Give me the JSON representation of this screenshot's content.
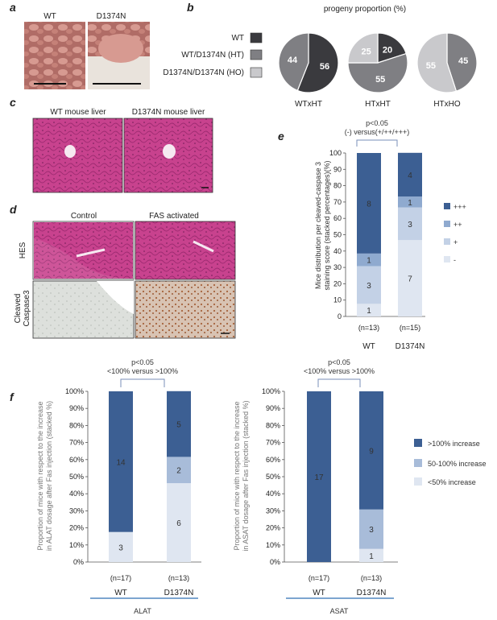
{
  "panels": {
    "a": {
      "letter": "a",
      "labels": [
        "WT",
        "D1374N"
      ]
    },
    "b": {
      "letter": "b",
      "title": "progeny proportion (%)",
      "legend": [
        {
          "label": "WT",
          "color": "#3a3a3e"
        },
        {
          "label": "WT/D1374N (HT)",
          "color": "#7f7f83"
        },
        {
          "label": "D1374N/D1374N (HO)",
          "color": "#c9c9cc"
        }
      ]
    },
    "c": {
      "letter": "c",
      "labels": [
        "WT mouse liver",
        "D1374N mouse liver"
      ]
    },
    "d": {
      "letter": "d",
      "col_labels": [
        "Control",
        "FAS activated"
      ],
      "row_labels": [
        "HES",
        "Cleaved",
        "Caspase3"
      ]
    },
    "e": {
      "letter": "e",
      "sig": "p<0.05",
      "sig_sub": "(-) versus(+/++/+++)",
      "ylabel_1": "Mice distribution per cleaved-caspase 3",
      "ylabel_2": "staining score (stacked percentages)(%)"
    },
    "f": {
      "letter": "f",
      "sig": "p<0.05",
      "sig_sub": "<100% versus >100%",
      "ylabel_1": "Proportion of mice with respect to the increase",
      "alat_ylabel_2": "in ALAT dosage after Fas injection (stacked %)",
      "asat_ylabel_2": "in ASAT dosage after Fas injection (stacked %)",
      "alat_label": "ALAT",
      "asat_label": "ASAT",
      "legend": [
        {
          "label": ">100% increase",
          "color": "#3c5f93"
        },
        {
          "label": "50-100% increase",
          "color": "#a8bcd9"
        },
        {
          "label": "<50% increase",
          "color": "#dfe6f1"
        }
      ]
    }
  },
  "chart_data": [
    {
      "type": "pie",
      "panel": "b",
      "charts": [
        {
          "title": "WTxHT",
          "slices": [
            {
              "label": "WT",
              "value": 56,
              "color": "#3a3a3e"
            },
            {
              "label": "WT/D1374N (HT)",
              "value": 44,
              "color": "#7f7f83"
            }
          ]
        },
        {
          "title": "HTxHT",
          "slices": [
            {
              "label": "WT",
              "value": 20,
              "color": "#3a3a3e"
            },
            {
              "label": "WT/D1374N (HT)",
              "value": 55,
              "color": "#7f7f83"
            },
            {
              "label": "D1374N/D1374N (HO)",
              "value": 25,
              "color": "#c9c9cc"
            }
          ]
        },
        {
          "title": "HTxHO",
          "slices": [
            {
              "label": "WT/D1374N (HT)",
              "value": 45,
              "color": "#7f7f83"
            },
            {
              "label": "D1374N/D1374N (HO)",
              "value": 55,
              "color": "#c9c9cc"
            }
          ]
        }
      ]
    },
    {
      "type": "bar",
      "panel": "e",
      "stacked": true,
      "ylim": [
        0,
        100
      ],
      "yticks": [
        0,
        10,
        20,
        30,
        40,
        50,
        60,
        70,
        80,
        90,
        100
      ],
      "categories": [
        "WT",
        "D1374N"
      ],
      "n_labels": [
        "(n=13)",
        "(n=15)"
      ],
      "series": [
        {
          "name": "-",
          "color": "#dfe6f1",
          "counts": [
            1,
            7
          ],
          "values": [
            7.7,
            46.7
          ]
        },
        {
          "name": "+",
          "color": "#c3d1e6",
          "counts": [
            3,
            3
          ],
          "values": [
            23.1,
            20.0
          ]
        },
        {
          "name": "++",
          "color": "#8faacf",
          "counts": [
            1,
            1
          ],
          "values": [
            7.7,
            6.7
          ]
        },
        {
          "name": "+++",
          "color": "#3c5f93",
          "counts": [
            8,
            4
          ],
          "values": [
            61.5,
            26.7
          ]
        }
      ],
      "legend_order": [
        "+++",
        "++",
        "+",
        "-"
      ]
    },
    {
      "type": "bar",
      "panel": "f",
      "name": "ALAT",
      "stacked": true,
      "ylim": [
        0,
        100
      ],
      "yticks": [
        "0%",
        "10%",
        "20%",
        "30%",
        "40%",
        "50%",
        "60%",
        "70%",
        "80%",
        "90%",
        "100%"
      ],
      "categories": [
        "WT",
        "D1374N"
      ],
      "n_labels": [
        "(n=17)",
        "(n=13)"
      ],
      "series": [
        {
          "name": "<50% increase",
          "color": "#dfe6f1",
          "counts": [
            3,
            6
          ],
          "values": [
            17.6,
            46.2
          ]
        },
        {
          "name": "50-100% increase",
          "color": "#a8bcd9",
          "counts": [
            0,
            2
          ],
          "values": [
            0,
            15.4
          ]
        },
        {
          "name": ">100% increase",
          "color": "#3c5f93",
          "counts": [
            14,
            5
          ],
          "values": [
            82.4,
            38.5
          ]
        }
      ]
    },
    {
      "type": "bar",
      "panel": "f",
      "name": "ASAT",
      "stacked": true,
      "ylim": [
        0,
        100
      ],
      "yticks": [
        "0%",
        "10%",
        "20%",
        "30%",
        "40%",
        "50%",
        "60%",
        "70%",
        "80%",
        "90%",
        "100%"
      ],
      "categories": [
        "WT",
        "D1374N"
      ],
      "n_labels": [
        "(n=17)",
        "(n=13)"
      ],
      "series": [
        {
          "name": "<50% increase",
          "color": "#dfe6f1",
          "counts": [
            0,
            1
          ],
          "values": [
            0,
            7.7
          ]
        },
        {
          "name": "50-100% increase",
          "color": "#a8bcd9",
          "counts": [
            0,
            3
          ],
          "values": [
            0,
            23.1
          ]
        },
        {
          "name": ">100% increase",
          "color": "#3c5f93",
          "counts": [
            17,
            9
          ],
          "values": [
            100,
            69.2
          ]
        }
      ]
    }
  ]
}
